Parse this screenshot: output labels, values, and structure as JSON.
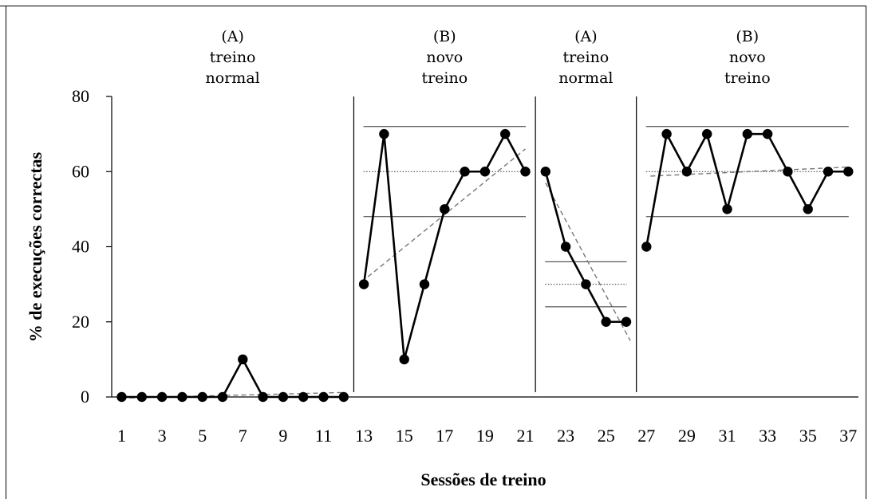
{
  "chart_data": {
    "type": "line",
    "title": "",
    "xlabel": "Sessões de treino",
    "ylabel": "% de execuções correctas",
    "ylim": [
      0,
      80
    ],
    "yticks": [
      0,
      20,
      40,
      60,
      80
    ],
    "xlim": [
      1,
      37
    ],
    "xticks": [
      1,
      3,
      5,
      7,
      9,
      11,
      13,
      15,
      17,
      19,
      21,
      23,
      25,
      27,
      29,
      31,
      33,
      35,
      37
    ],
    "grid": false,
    "phase_change_lines": [
      12.5,
      21.5,
      26.5
    ],
    "phases": [
      {
        "label_lines": [
          "(A)",
          "treino",
          "normal"
        ],
        "center_x": 6.5
      },
      {
        "label_lines": [
          "(B)",
          "novo",
          "treino"
        ],
        "center_x": 17
      },
      {
        "label_lines": [
          "(A)",
          "treino",
          "normal"
        ],
        "center_x": 24
      },
      {
        "label_lines": [
          "(B)",
          "novo",
          "treino"
        ],
        "center_x": 32
      }
    ],
    "series": [
      {
        "x": [
          1,
          2,
          3,
          4,
          5,
          6,
          7,
          8,
          9,
          10,
          11,
          12
        ],
        "values": [
          0,
          0,
          0,
          0,
          0,
          0,
          10,
          0,
          0,
          0,
          0,
          0
        ]
      },
      {
        "x": [
          13,
          14,
          15,
          16,
          17,
          18,
          19,
          20,
          21
        ],
        "values": [
          30,
          70,
          10,
          30,
          50,
          60,
          60,
          70,
          60
        ]
      },
      {
        "x": [
          22,
          23,
          24,
          25,
          26
        ],
        "values": [
          60,
          40,
          30,
          20,
          20
        ]
      },
      {
        "x": [
          27,
          28,
          29,
          30,
          31,
          32,
          33,
          34,
          35,
          36,
          37
        ],
        "values": [
          40,
          70,
          60,
          70,
          50,
          70,
          70,
          60,
          50,
          60,
          60
        ]
      }
    ],
    "trend_lines": [
      {
        "x": [
          1,
          12
        ],
        "y": [
          -0.3,
          1.2
        ]
      },
      {
        "x": [
          13.2,
          21
        ],
        "y": [
          32,
          66
        ]
      },
      {
        "x": [
          22,
          26.2
        ],
        "y": [
          57,
          15
        ]
      },
      {
        "x": [
          27.2,
          37
        ],
        "y": [
          58.8,
          61.2
        ]
      }
    ],
    "reference_bands": [
      {
        "x": [
          13,
          21
        ],
        "upper": 72,
        "mean": 60,
        "lower": 48
      },
      {
        "x": [
          22,
          26
        ],
        "upper": 36,
        "mean": 30,
        "lower": 24
      },
      {
        "x": [
          27,
          37
        ],
        "upper": 72,
        "mean": 60,
        "lower": 48
      }
    ]
  }
}
